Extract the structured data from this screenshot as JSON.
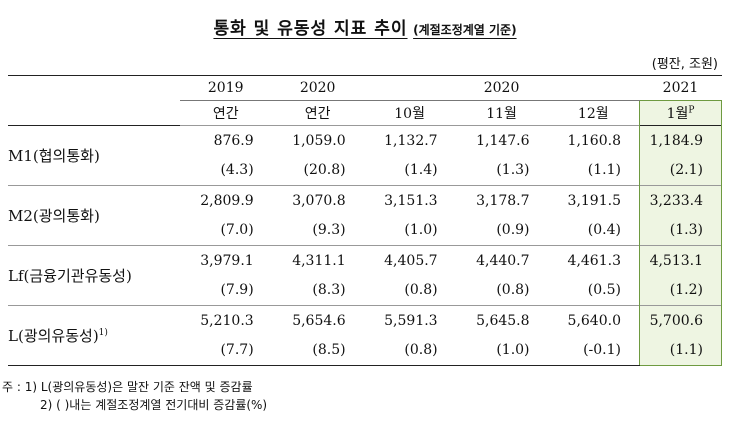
{
  "title": {
    "main": "통화 및 유동성 지표 추이",
    "sub": "(계절조정계열 기준)"
  },
  "unit": "(평잔, 조원)",
  "header": {
    "years": [
      "2019",
      "2020",
      "2020",
      "2021"
    ],
    "periods": [
      "연간",
      "연간",
      "10월",
      "11월",
      "12월",
      "1월"
    ],
    "prelim_mark": "P"
  },
  "rows": [
    {
      "label": "M1(협의통화)",
      "values": [
        "876.9",
        "1,059.0",
        "1,132.7",
        "1,147.6",
        "1,160.8",
        "1,184.9"
      ],
      "growth": [
        "(4.3)",
        "(20.8)",
        "(1.4)",
        "(1.3)",
        "(1.1)",
        "(2.1)"
      ]
    },
    {
      "label": "M2(광의통화)",
      "values": [
        "2,809.9",
        "3,070.8",
        "3,151.3",
        "3,178.7",
        "3,191.5",
        "3,233.4"
      ],
      "growth": [
        "(7.0)",
        "(9.3)",
        "(1.0)",
        "(0.9)",
        "(0.4)",
        "(1.3)"
      ]
    },
    {
      "label": "Lf(금융기관유동성)",
      "values": [
        "3,979.1",
        "4,311.1",
        "4,405.7",
        "4,440.7",
        "4,461.3",
        "4,513.1"
      ],
      "growth": [
        "(7.9)",
        "(8.3)",
        "(0.8)",
        "(0.8)",
        "(0.5)",
        "(1.2)"
      ]
    },
    {
      "label": "L(광의유동성)",
      "footnote": "1)",
      "values": [
        "5,210.3",
        "5,654.6",
        "5,591.3",
        "5,645.8",
        "5,640.0",
        "5,700.6"
      ],
      "growth": [
        "(7.7)",
        "(8.5)",
        "(0.8)",
        "(1.0)",
        "(-0.1)",
        "(1.1)"
      ]
    }
  ],
  "notes": {
    "line1": "주 : 1) L(광의유동성)은 말잔 기준 잔액 및 증감률",
    "line2": "2) (     )내는 계절조정계열 전기대비 증감률(%)"
  },
  "colors": {
    "highlight_bg": "#eef5e2",
    "highlight_border": "#6e9a40"
  }
}
